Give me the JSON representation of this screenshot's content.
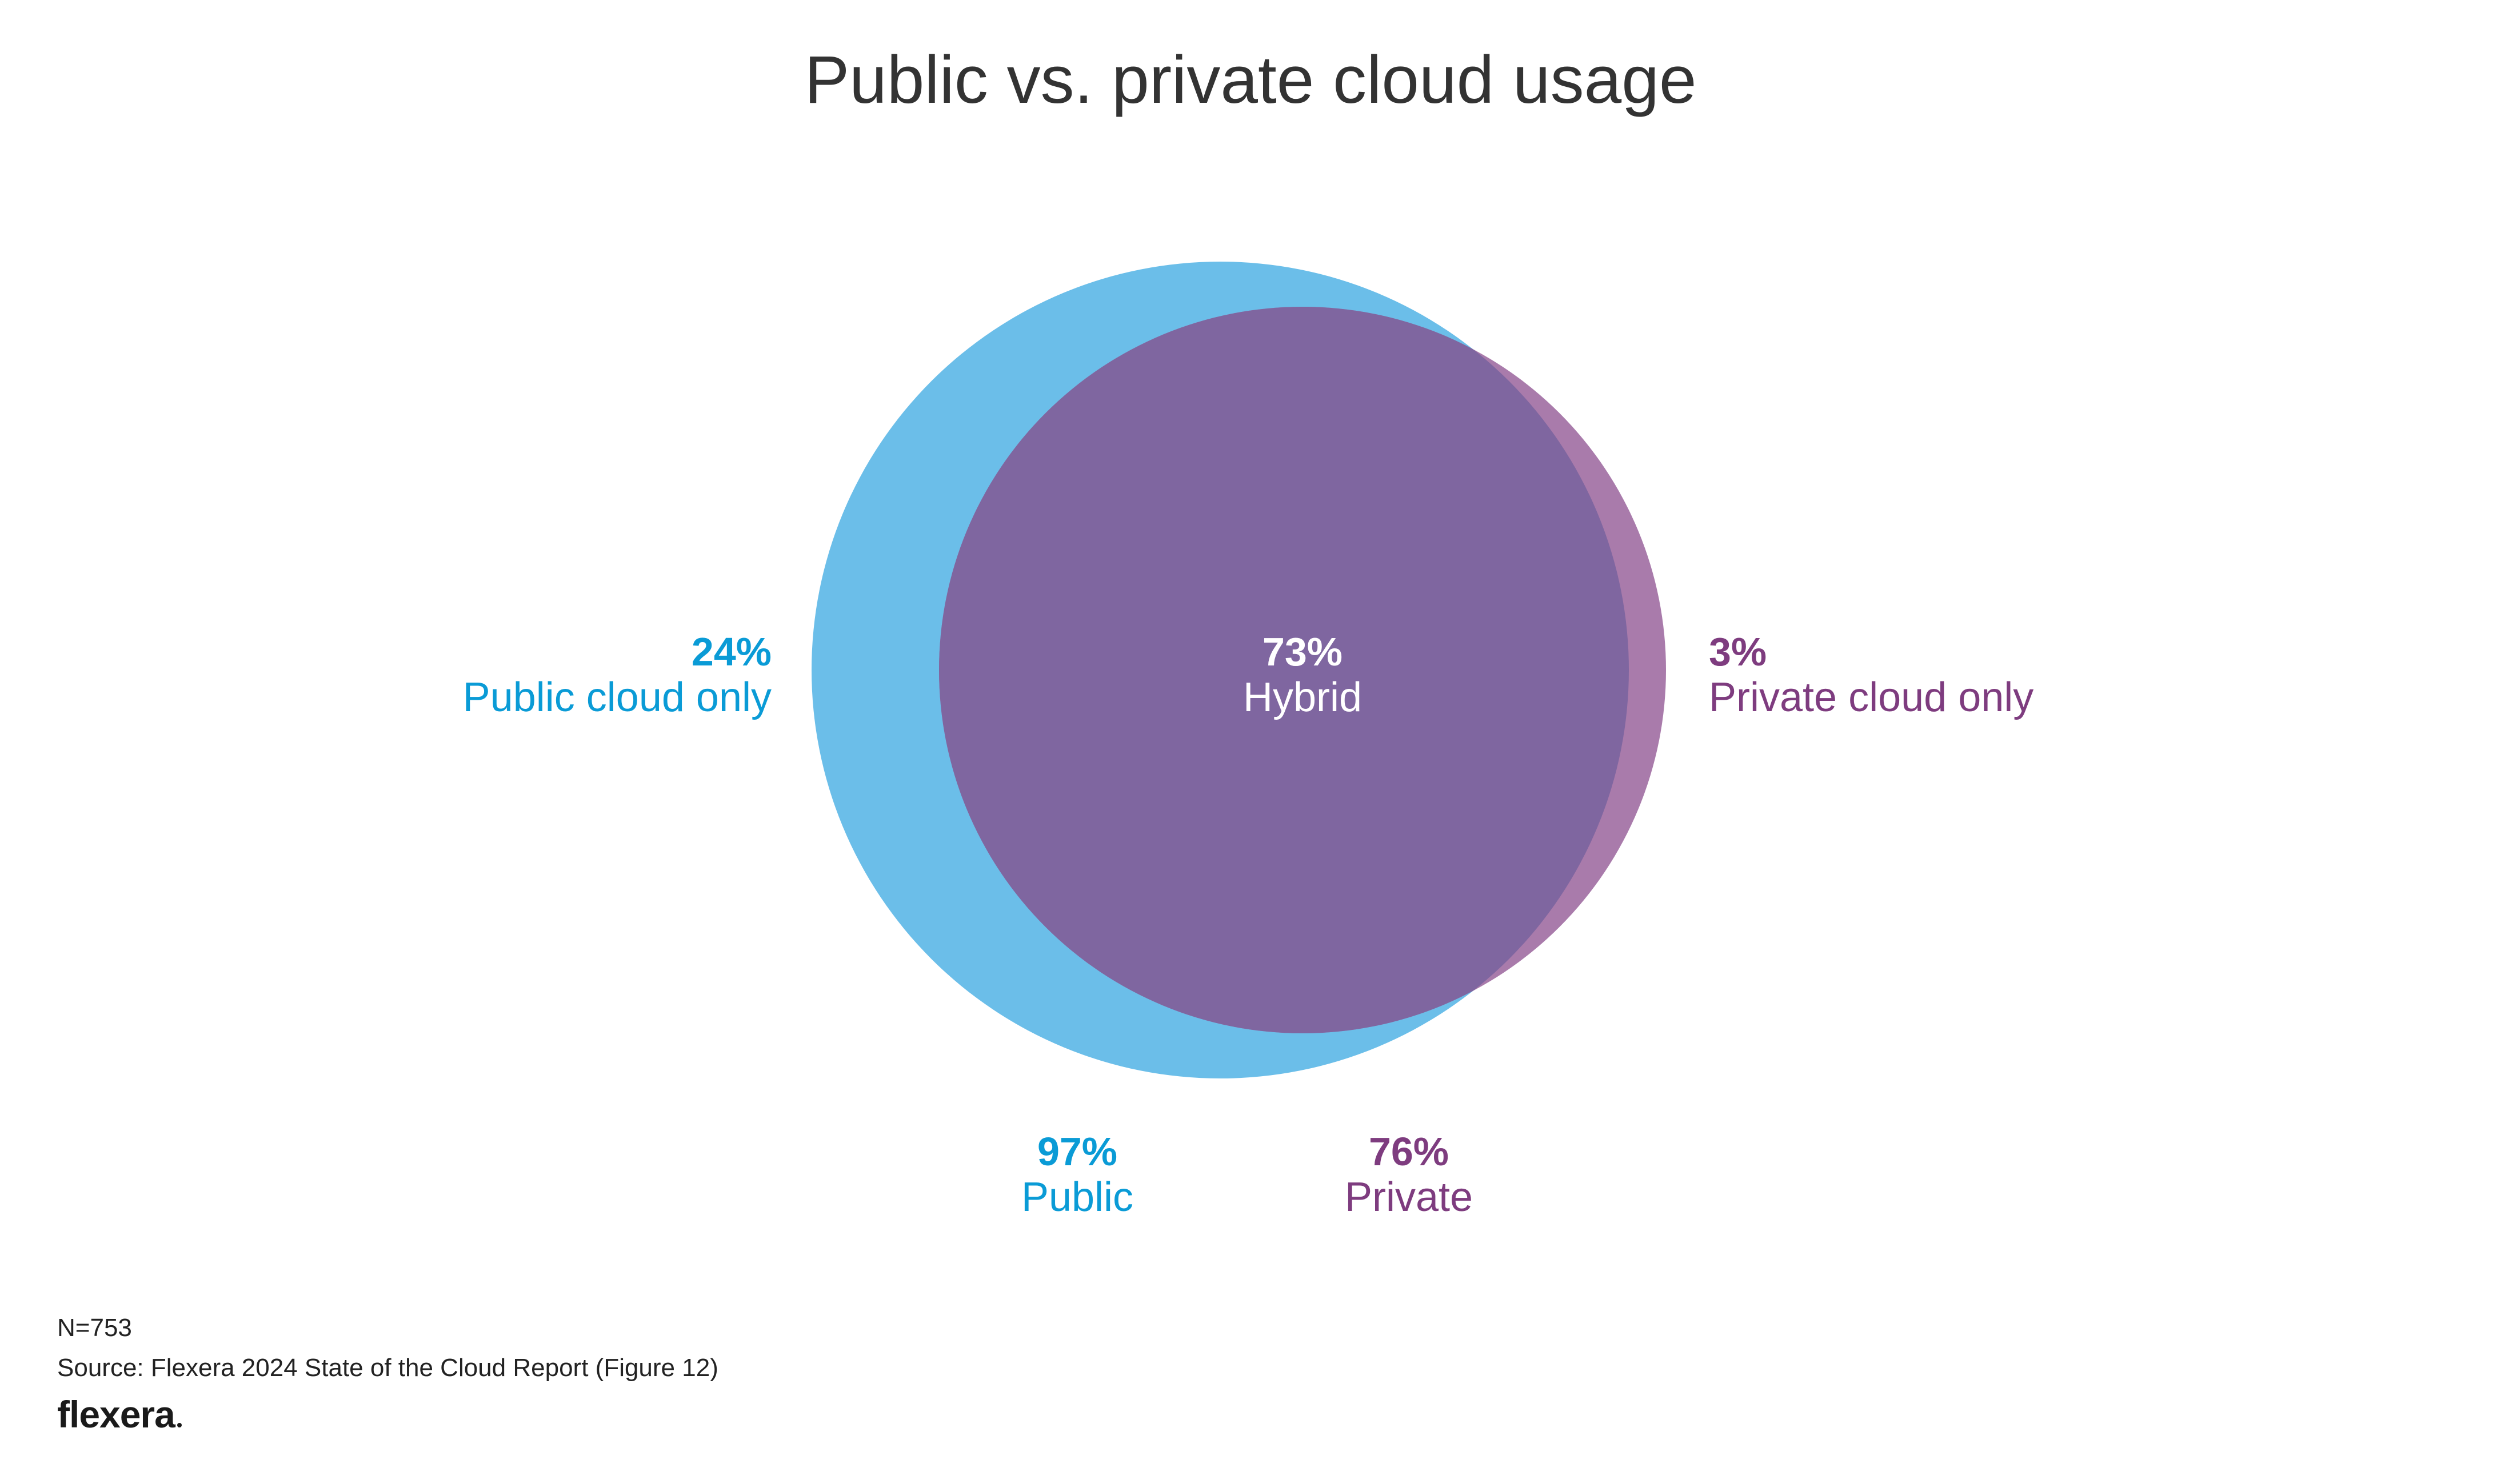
{
  "chart_data": {
    "type": "venn",
    "title": "Public vs. private cloud usage",
    "sets": [
      {
        "name": "Public",
        "value_label": "97%",
        "value": 97,
        "color": "#6BBEE9"
      },
      {
        "name": "Private",
        "value_label": "76%",
        "value": 76,
        "color": "#A97BAB"
      }
    ],
    "regions": [
      {
        "name": "Public cloud only",
        "value_label": "24%",
        "value": 24,
        "color": "#0A9BD6"
      },
      {
        "name": "Hybrid",
        "value_label": "73%",
        "value": 73,
        "color": "#7F66A0"
      },
      {
        "name": "Private cloud only",
        "value_label": "3%",
        "value": 3,
        "color": "#7E3C7F"
      }
    ],
    "label_colors": {
      "public": "#0A9BD6",
      "private": "#7E3C7F",
      "hybrid": "#FFFFFF"
    }
  },
  "footnotes": {
    "n": "N=753",
    "source": "Source: Flexera 2024 State of the Cloud Report (Figure 12)"
  },
  "brand": {
    "logo_text": "flexera"
  }
}
